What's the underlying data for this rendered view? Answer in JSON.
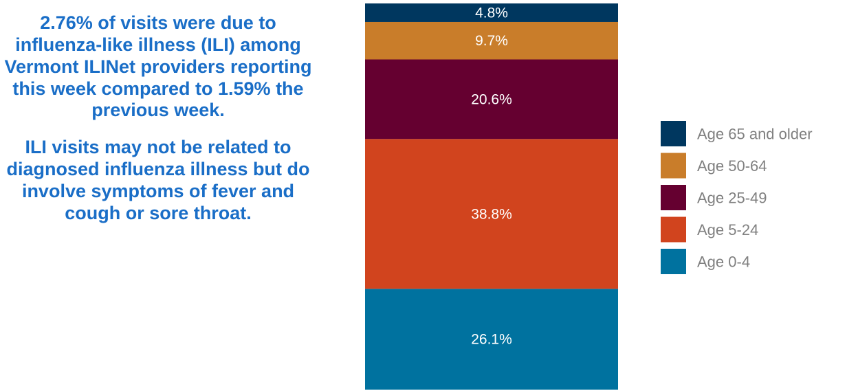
{
  "summary": {
    "paragraph1": "2.76% of visits were due to influenza-like illness (ILI) among Vermont ILINet providers reporting this week compared to 1.59% the previous week.",
    "paragraph2": "ILI visits may not be related to diagnosed influenza illness but do involve symptoms of fever and cough or sore throat."
  },
  "colors": {
    "summary_text": "#1a6ec7",
    "label_text": "#ffffff",
    "legend_text": "#808080"
  },
  "chart_data": {
    "type": "bar",
    "subtype": "100% stacked",
    "stack_order": "bottom-to-top",
    "ylim": [
      0,
      100
    ],
    "grid": false,
    "legend_position": "right",
    "series": [
      {
        "name": "Age 0-4",
        "value": 26.1,
        "label": "26.1%",
        "color": "#00729f"
      },
      {
        "name": "Age 5-24",
        "value": 38.8,
        "label": "38.8%",
        "color": "#d1441e"
      },
      {
        "name": "Age 25-49",
        "value": 20.6,
        "label": "20.6%",
        "color": "#650030"
      },
      {
        "name": "Age 50-64",
        "value": 9.7,
        "label": "9.7%",
        "color": "#c97d2a"
      },
      {
        "name": "Age 65 and older",
        "value": 4.8,
        "label": "4.8%",
        "color": "#00375f"
      }
    ]
  }
}
